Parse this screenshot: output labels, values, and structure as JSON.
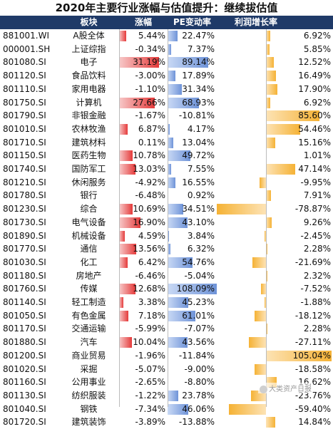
{
  "chart_data": {
    "type": "table",
    "title": "2020年主要行业涨幅与估值提升：继续拔估值",
    "columns": [
      "",
      "板块",
      "涨幅",
      "PE变动率",
      "利润增长率"
    ],
    "colors": {
      "gain": "#e53a3a",
      "pe": "#6e93d8",
      "profit": "#f5b235",
      "header": "#1f3a68"
    },
    "rows": [
      {
        "code": "881001.WI",
        "name": "A股全体",
        "gain": "5.44%",
        "pe": "22.47%",
        "profit": "6.92%",
        "gain_v": 5.44,
        "pe_v": 22.47,
        "profit_v": 6.92
      },
      {
        "code": "000001.SH",
        "name": "上证综指",
        "gain": "-0.34%",
        "pe": "7.37%",
        "profit": "5.85%",
        "gain_v": -0.34,
        "pe_v": 7.37,
        "profit_v": 5.85
      },
      {
        "code": "801080.SI",
        "name": "电子",
        "gain": "31.19%",
        "pe": "89.14%",
        "profit": "12.52%",
        "gain_v": 31.19,
        "pe_v": 89.14,
        "profit_v": 12.52
      },
      {
        "code": "801120.SI",
        "name": "食品饮料",
        "gain": "-3.00%",
        "pe": "17.89%",
        "profit": "16.49%",
        "gain_v": -3.0,
        "pe_v": 17.89,
        "profit_v": 16.49
      },
      {
        "code": "801110.SI",
        "name": "家用电器",
        "gain": "-1.10%",
        "pe": "31.34%",
        "profit": "17.90%",
        "gain_v": -1.1,
        "pe_v": 31.34,
        "profit_v": 17.9
      },
      {
        "code": "801750.SI",
        "name": "计算机",
        "gain": "27.66%",
        "pe": "68.93%",
        "profit": "6.92%",
        "gain_v": 27.66,
        "pe_v": 68.93,
        "profit_v": 6.92
      },
      {
        "code": "801790.SI",
        "name": "非银金融",
        "gain": "-1.67%",
        "pe": "-10.81%",
        "profit": "85.60%",
        "gain_v": -1.67,
        "pe_v": -10.81,
        "profit_v": 85.6
      },
      {
        "code": "801010.SI",
        "name": "农林牧渔",
        "gain": "6.87%",
        "pe": "4.17%",
        "profit": "54.46%",
        "gain_v": 6.87,
        "pe_v": 4.17,
        "profit_v": 54.46
      },
      {
        "code": "801710.SI",
        "name": "建筑材料",
        "gain": "0.11%",
        "pe": "13.04%",
        "profit": "15.16%",
        "gain_v": 0.11,
        "pe_v": 13.04,
        "profit_v": 15.16
      },
      {
        "code": "801150.SI",
        "name": "医药生物",
        "gain": "10.78%",
        "pe": "49.72%",
        "profit": "1.01%",
        "gain_v": 10.78,
        "pe_v": 49.72,
        "profit_v": 1.01
      },
      {
        "code": "801740.SI",
        "name": "国防军工",
        "gain": "13.03%",
        "pe": "7.55%",
        "profit": "47.14%",
        "gain_v": 13.03,
        "pe_v": 7.55,
        "profit_v": 47.14
      },
      {
        "code": "801210.SI",
        "name": "休闲服务",
        "gain": "-4.92%",
        "pe": "16.55%",
        "profit": "-9.95%",
        "gain_v": -4.92,
        "pe_v": 16.55,
        "profit_v": -9.95
      },
      {
        "code": "801780.SI",
        "name": "银行",
        "gain": "-6.48%",
        "pe": "0.92%",
        "profit": "7.91%",
        "gain_v": -6.48,
        "pe_v": 0.92,
        "profit_v": 7.91
      },
      {
        "code": "801230.SI",
        "name": "综合",
        "gain": "10.69%",
        "pe": "34.51%",
        "profit": "-78.87%",
        "gain_v": 10.69,
        "pe_v": 34.51,
        "profit_v": -78.87
      },
      {
        "code": "801730.SI",
        "name": "电气设备",
        "gain": "16.90%",
        "pe": "43.10%",
        "profit": "9.26%",
        "gain_v": 16.9,
        "pe_v": 43.1,
        "profit_v": 9.26
      },
      {
        "code": "801890.SI",
        "name": "机械设备",
        "gain": "4.59%",
        "pe": "3.84%",
        "profit": "-2.45%",
        "gain_v": 4.59,
        "pe_v": 3.84,
        "profit_v": -2.45
      },
      {
        "code": "801770.SI",
        "name": "通信",
        "gain": "13.56%",
        "pe": "6.32%",
        "profit": "2.28%",
        "gain_v": 13.56,
        "pe_v": 6.32,
        "profit_v": 2.28
      },
      {
        "code": "801030.SI",
        "name": "化工",
        "gain": "6.42%",
        "pe": "54.76%",
        "profit": "-21.69%",
        "gain_v": 6.42,
        "pe_v": 54.76,
        "profit_v": -21.69
      },
      {
        "code": "801180.SI",
        "name": "房地产",
        "gain": "-6.46%",
        "pe": "-5.04%",
        "profit": "2.32%",
        "gain_v": -6.46,
        "pe_v": -5.04,
        "profit_v": 2.32
      },
      {
        "code": "801760.SI",
        "name": "传媒",
        "gain": "12.68%",
        "pe": "108.09%",
        "profit": "-7.52%",
        "gain_v": 12.68,
        "pe_v": 108.09,
        "profit_v": -7.52
      },
      {
        "code": "801140.SI",
        "name": "轻工制造",
        "gain": "3.38%",
        "pe": "45.23%",
        "profit": "-1.88%",
        "gain_v": 3.38,
        "pe_v": 45.23,
        "profit_v": -1.88
      },
      {
        "code": "801050.SI",
        "name": "有色金属",
        "gain": "7.18%",
        "pe": "61.01%",
        "profit": "-18.12%",
        "gain_v": 7.18,
        "pe_v": 61.01,
        "profit_v": -18.12
      },
      {
        "code": "801170.SI",
        "name": "交通运输",
        "gain": "-5.99%",
        "pe": "-7.07%",
        "profit": "2.28%",
        "gain_v": -5.99,
        "pe_v": -7.07,
        "profit_v": 2.28
      },
      {
        "code": "801880.SI",
        "name": "汽车",
        "gain": "10.04%",
        "pe": "43.56%",
        "profit": "-27.11%",
        "gain_v": 10.04,
        "pe_v": 43.56,
        "profit_v": -27.11
      },
      {
        "code": "801200.SI",
        "name": "商业贸易",
        "gain": "-1.96%",
        "pe": "-11.84%",
        "profit": "105.04%",
        "gain_v": -1.96,
        "pe_v": -11.84,
        "profit_v": 105.04
      },
      {
        "code": "801020.SI",
        "name": "采掘",
        "gain": "-5.07%",
        "pe": "-9.00%",
        "profit": "-18.58%",
        "gain_v": -5.07,
        "pe_v": -9.0,
        "profit_v": -18.58
      },
      {
        "code": "801160.SI",
        "name": "公用事业",
        "gain": "-2.65%",
        "pe": "-8.80%",
        "profit": "16.62%",
        "gain_v": -2.65,
        "pe_v": -8.8,
        "profit_v": 16.62
      },
      {
        "code": "801130.SI",
        "name": "纺织服装",
        "gain": "-1.22%",
        "pe": "23.78%",
        "profit": "-23.76%",
        "gain_v": -1.22,
        "pe_v": 23.78,
        "profit_v": -23.76
      },
      {
        "code": "801040.SI",
        "name": "钢铁",
        "gain": "-7.34%",
        "pe": "46.06%",
        "profit": "-59.40%",
        "gain_v": -7.34,
        "pe_v": 46.06,
        "profit_v": -59.4
      },
      {
        "code": "801720.SI",
        "name": "建筑装饰",
        "gain": "-3.89%",
        "pe": "-13.88%",
        "profit": "14.84%",
        "gain_v": -3.89,
        "pe_v": -13.88,
        "profit_v": 14.84
      }
    ]
  },
  "watermark": {
    "text": "大类资产日报",
    "icon": "wechat-icon"
  }
}
